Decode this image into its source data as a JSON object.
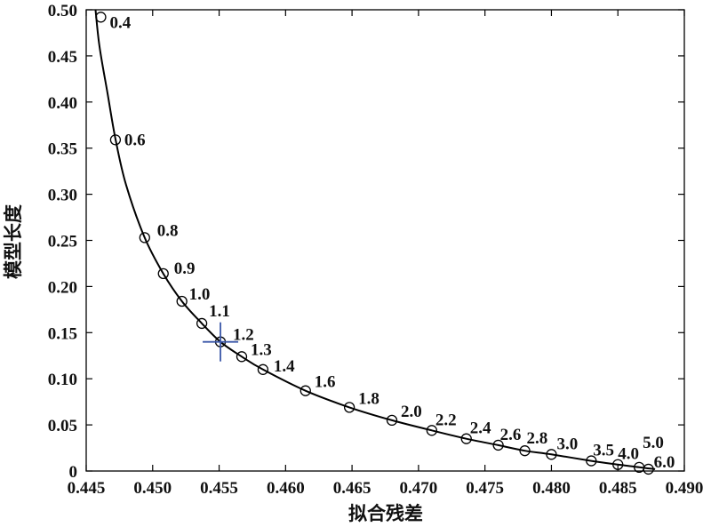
{
  "chart_data": {
    "type": "line",
    "title": "",
    "xlabel": "拟合残差",
    "ylabel": "模型长度",
    "xlim": [
      0.445,
      0.49
    ],
    "ylim": [
      0,
      0.5
    ],
    "xticks": [
      {
        "value": 0.445,
        "label": "0.445"
      },
      {
        "value": 0.45,
        "label": "0.450"
      },
      {
        "value": 0.455,
        "label": "0.455"
      },
      {
        "value": 0.46,
        "label": "0.460"
      },
      {
        "value": 0.465,
        "label": "0.465"
      },
      {
        "value": 0.47,
        "label": "0.470"
      },
      {
        "value": 0.475,
        "label": "0.475"
      },
      {
        "value": 0.48,
        "label": "0.480"
      },
      {
        "value": 0.485,
        "label": "0.485"
      },
      {
        "value": 0.49,
        "label": "0.490"
      }
    ],
    "yticks": [
      {
        "value": 0,
        "label": "0"
      },
      {
        "value": 0.05,
        "label": "0.05"
      },
      {
        "value": 0.1,
        "label": "0.10"
      },
      {
        "value": 0.15,
        "label": "0.15"
      },
      {
        "value": 0.2,
        "label": "0.20"
      },
      {
        "value": 0.25,
        "label": "0.25"
      },
      {
        "value": 0.3,
        "label": "0.30"
      },
      {
        "value": 0.35,
        "label": "0.35"
      },
      {
        "value": 0.4,
        "label": "0.40"
      },
      {
        "value": 0.45,
        "label": "0.45"
      },
      {
        "value": 0.5,
        "label": "0.50"
      }
    ],
    "grid": false,
    "colors": {
      "line": "#000000",
      "marker": "#000000",
      "highlight": "#3a57a8"
    },
    "curve": [
      {
        "x": 0.4457,
        "y": 0.5
      },
      {
        "x": 0.446,
        "y": 0.46
      },
      {
        "x": 0.4466,
        "y": 0.41
      },
      {
        "x": 0.4472,
        "y": 0.36
      },
      {
        "x": 0.448,
        "y": 0.31
      },
      {
        "x": 0.4494,
        "y": 0.253
      },
      {
        "x": 0.4508,
        "y": 0.214
      },
      {
        "x": 0.4522,
        "y": 0.184
      },
      {
        "x": 0.4537,
        "y": 0.16
      },
      {
        "x": 0.4551,
        "y": 0.14
      },
      {
        "x": 0.4567,
        "y": 0.124
      },
      {
        "x": 0.4583,
        "y": 0.11
      },
      {
        "x": 0.4615,
        "y": 0.087
      },
      {
        "x": 0.4648,
        "y": 0.069
      },
      {
        "x": 0.468,
        "y": 0.055
      },
      {
        "x": 0.471,
        "y": 0.044
      },
      {
        "x": 0.4736,
        "y": 0.035
      },
      {
        "x": 0.476,
        "y": 0.028
      },
      {
        "x": 0.478,
        "y": 0.022
      },
      {
        "x": 0.48,
        "y": 0.018
      },
      {
        "x": 0.483,
        "y": 0.011
      },
      {
        "x": 0.485,
        "y": 0.007
      },
      {
        "x": 0.4866,
        "y": 0.004
      },
      {
        "x": 0.4878,
        "y": 0.002
      }
    ],
    "points": [
      {
        "label": "0.4",
        "x": 0.4461,
        "y": 0.492,
        "dx": 10,
        "dy": 12
      },
      {
        "label": "0.6",
        "x": 0.4472,
        "y": 0.359,
        "dx": 10,
        "dy": 6
      },
      {
        "label": "0.8",
        "x": 0.4494,
        "y": 0.253,
        "dx": 14,
        "dy": -2
      },
      {
        "label": "0.9",
        "x": 0.4508,
        "y": 0.214,
        "dx": 12,
        "dy": 0
      },
      {
        "label": "1.0",
        "x": 0.4522,
        "y": 0.184,
        "dx": 8,
        "dy": -2
      },
      {
        "label": "1.1",
        "x": 0.4537,
        "y": 0.16,
        "dx": 8,
        "dy": -8
      },
      {
        "label": "1.2",
        "x": 0.4551,
        "y": 0.14,
        "dx": 14,
        "dy": -2
      },
      {
        "label": "1.3",
        "x": 0.4567,
        "y": 0.124,
        "dx": 10,
        "dy": -2
      },
      {
        "label": "1.4",
        "x": 0.4583,
        "y": 0.11,
        "dx": 12,
        "dy": 2
      },
      {
        "label": "1.6",
        "x": 0.4615,
        "y": 0.087,
        "dx": 10,
        "dy": -4
      },
      {
        "label": "1.8",
        "x": 0.4648,
        "y": 0.069,
        "dx": 10,
        "dy": -4
      },
      {
        "label": "2.0",
        "x": 0.468,
        "y": 0.055,
        "dx": 10,
        "dy": -4
      },
      {
        "label": "2.2",
        "x": 0.471,
        "y": 0.044,
        "dx": 4,
        "dy": -6
      },
      {
        "label": "2.4",
        "x": 0.4736,
        "y": 0.035,
        "dx": 4,
        "dy": -6
      },
      {
        "label": "2.6",
        "x": 0.476,
        "y": 0.028,
        "dx": 2,
        "dy": -6
      },
      {
        "label": "2.8",
        "x": 0.478,
        "y": 0.022,
        "dx": 2,
        "dy": -8
      },
      {
        "label": "3.0",
        "x": 0.48,
        "y": 0.018,
        "dx": 6,
        "dy": -6
      },
      {
        "label": "3.5",
        "x": 0.483,
        "y": 0.011,
        "dx": 2,
        "dy": -6
      },
      {
        "label": "4.0",
        "x": 0.485,
        "y": 0.007,
        "dx": 0,
        "dy": -6
      },
      {
        "label": "5.0",
        "x": 0.4866,
        "y": 0.004,
        "dx": 4,
        "dy": -22
      },
      {
        "label": "6.0",
        "x": 0.4873,
        "y": 0.002,
        "dx": 6,
        "dy": -2
      }
    ],
    "highlight": {
      "x": 0.4551,
      "y": 0.14
    }
  }
}
